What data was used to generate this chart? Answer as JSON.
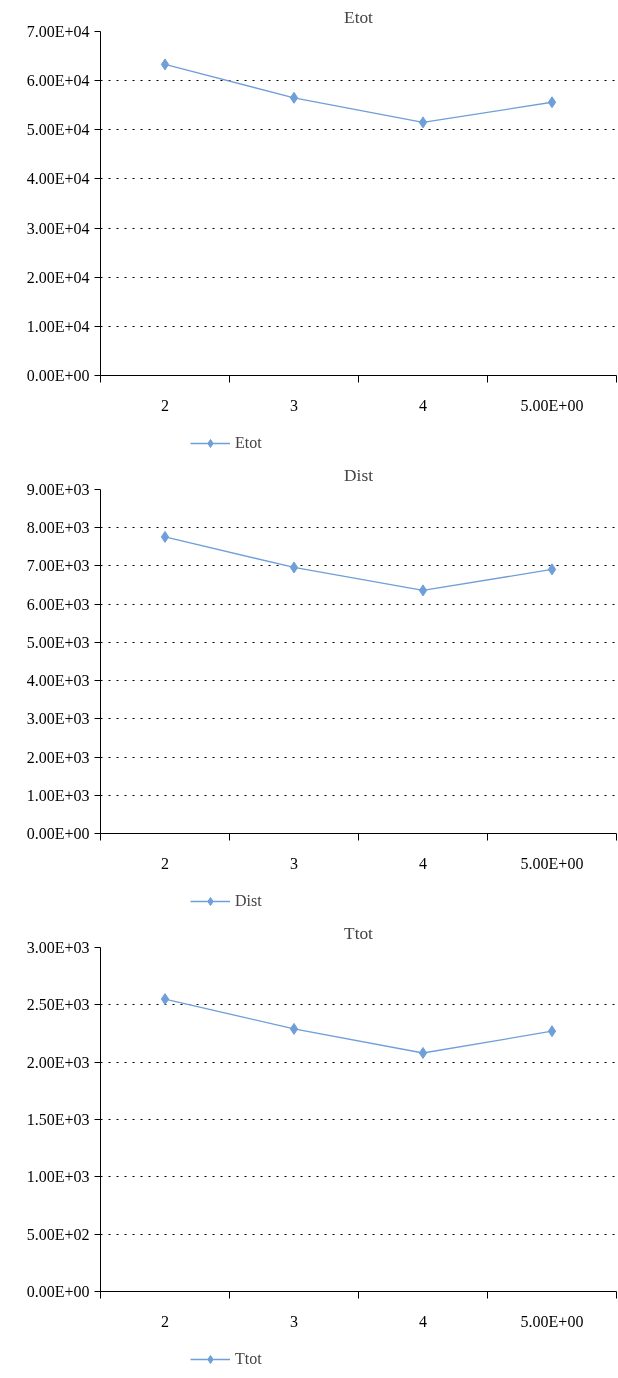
{
  "chart_data": [
    {
      "type": "line",
      "title": "Etot",
      "categories": [
        "2",
        "3",
        "4",
        "5.00E+00"
      ],
      "series": [
        {
          "name": "Etot",
          "color": "#6f9fd8",
          "values": [
            63300,
            56500,
            51500,
            55600
          ]
        }
      ],
      "ylim": [
        0,
        70000
      ],
      "yticks": [
        {
          "value": 0,
          "label": "0.00E+00"
        },
        {
          "value": 10000,
          "label": "1.00E+04"
        },
        {
          "value": 20000,
          "label": "2.00E+04"
        },
        {
          "value": 30000,
          "label": "3.00E+04"
        },
        {
          "value": 40000,
          "label": "4.00E+04"
        },
        {
          "value": 50000,
          "label": "5.00E+04"
        },
        {
          "value": 60000,
          "label": "6.00E+04"
        },
        {
          "value": 70000,
          "label": "7.00E+04"
        }
      ],
      "grid": "y",
      "legend": "bottom",
      "marker": "diamond",
      "line_style": "solid"
    },
    {
      "type": "line",
      "title": "Dist",
      "categories": [
        "2",
        "3",
        "4",
        "5.00E+00"
      ],
      "series": [
        {
          "name": "Dist",
          "color": "#6f9fd8",
          "values": [
            7760,
            6960,
            6360,
            6910
          ]
        }
      ],
      "ylim": [
        0,
        9000
      ],
      "yticks": [
        {
          "value": 0,
          "label": "0.00E+00"
        },
        {
          "value": 1000,
          "label": "1.00E+03"
        },
        {
          "value": 2000,
          "label": "2.00E+03"
        },
        {
          "value": 3000,
          "label": "3.00E+03"
        },
        {
          "value": 4000,
          "label": "4.00E+03"
        },
        {
          "value": 5000,
          "label": "5.00E+03"
        },
        {
          "value": 6000,
          "label": "6.00E+03"
        },
        {
          "value": 7000,
          "label": "7.00E+03"
        },
        {
          "value": 8000,
          "label": "8.00E+03"
        },
        {
          "value": 9000,
          "label": "9.00E+03"
        }
      ],
      "grid": "y",
      "legend": "bottom",
      "marker": "diamond",
      "line_style": "solid"
    },
    {
      "type": "line",
      "title": "Ttot",
      "categories": [
        "2",
        "3",
        "4",
        "5.00E+00"
      ],
      "series": [
        {
          "name": "Ttot",
          "color": "#6f9fd8",
          "values": [
            2550,
            2290,
            2080,
            2270
          ]
        }
      ],
      "ylim": [
        0,
        3000
      ],
      "yticks": [
        {
          "value": 0,
          "label": "0.00E+00"
        },
        {
          "value": 500,
          "label": "5.00E+02"
        },
        {
          "value": 1000,
          "label": "1.00E+03"
        },
        {
          "value": 1500,
          "label": "1.50E+03"
        },
        {
          "value": 2000,
          "label": "2.00E+03"
        },
        {
          "value": 2500,
          "label": "2.50E+03"
        },
        {
          "value": 3000,
          "label": "3.00E+03"
        }
      ],
      "grid": "y",
      "legend": "bottom",
      "marker": "diamond",
      "line_style": "solid"
    }
  ]
}
